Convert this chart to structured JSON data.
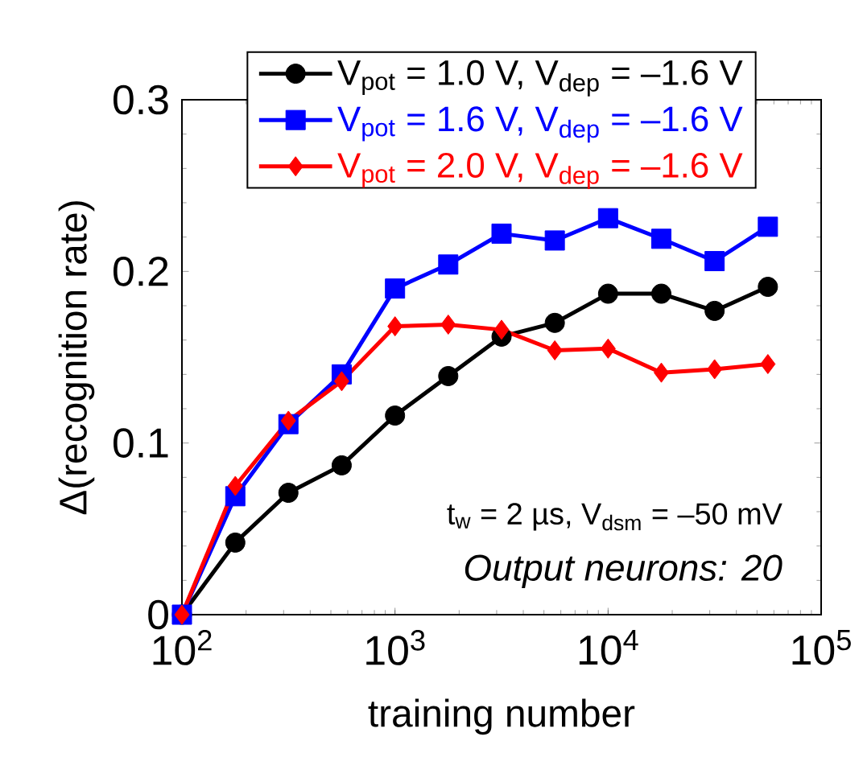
{
  "chart_data": {
    "type": "line",
    "xlabel": "training number",
    "ylabel": "Δ(recognition rate)",
    "log": "x",
    "xlim": [
      100,
      100000
    ],
    "ylim": [
      0,
      0.3
    ],
    "xticks": [
      {
        "value": 100,
        "label": "10$^{2}$"
      },
      {
        "value": 1000,
        "label": "10$^{3}$"
      },
      {
        "value": 10000,
        "label": "10$^{4}$"
      },
      {
        "value": 100000,
        "label": "10$^{5}$"
      }
    ],
    "yticks": [
      {
        "value": 0,
        "label": "0"
      },
      {
        "value": 0.1,
        "label": "0.1"
      },
      {
        "value": 0.2,
        "label": "0.2"
      },
      {
        "value": 0.3,
        "label": "0.3"
      }
    ],
    "x": [
      100,
      178,
      316,
      562,
      1000,
      1778,
      3162,
      5623,
      10000,
      17783,
      31623,
      56234
    ],
    "legend": "top",
    "grid": false,
    "line_style": "solid",
    "series": [
      {
        "name": "V$_{pot}$ = 1.0 V, V$_{dep}$ = –1.6 V",
        "color": "#000000",
        "marker": "circle",
        "values": [
          0,
          0.042,
          0.071,
          0.087,
          0.116,
          0.139,
          0.162,
          0.17,
          0.187,
          0.187,
          0.177,
          0.191
        ]
      },
      {
        "name": "V$_{pot}$ = 1.6 V, V$_{dep}$ = –1.6 V",
        "color": "#0000ff",
        "marker": "square",
        "values": [
          0,
          0.069,
          0.111,
          0.14,
          0.19,
          0.204,
          0.222,
          0.218,
          0.231,
          0.219,
          0.206,
          0.226
        ]
      },
      {
        "name": "V$_{pot}$ = 2.0 V, V$_{dep}$ = –1.6 V",
        "color": "#ff0000",
        "marker": "diamond",
        "values": [
          0,
          0.075,
          0.113,
          0.136,
          0.168,
          0.169,
          0.166,
          0.154,
          0.155,
          0.141,
          0.143,
          0.146
        ]
      }
    ],
    "annotations": [
      "t$_{w}$ = 2 µs, V$_{dsm}$ = –50 mV",
      "Output neurons: 20"
    ]
  }
}
